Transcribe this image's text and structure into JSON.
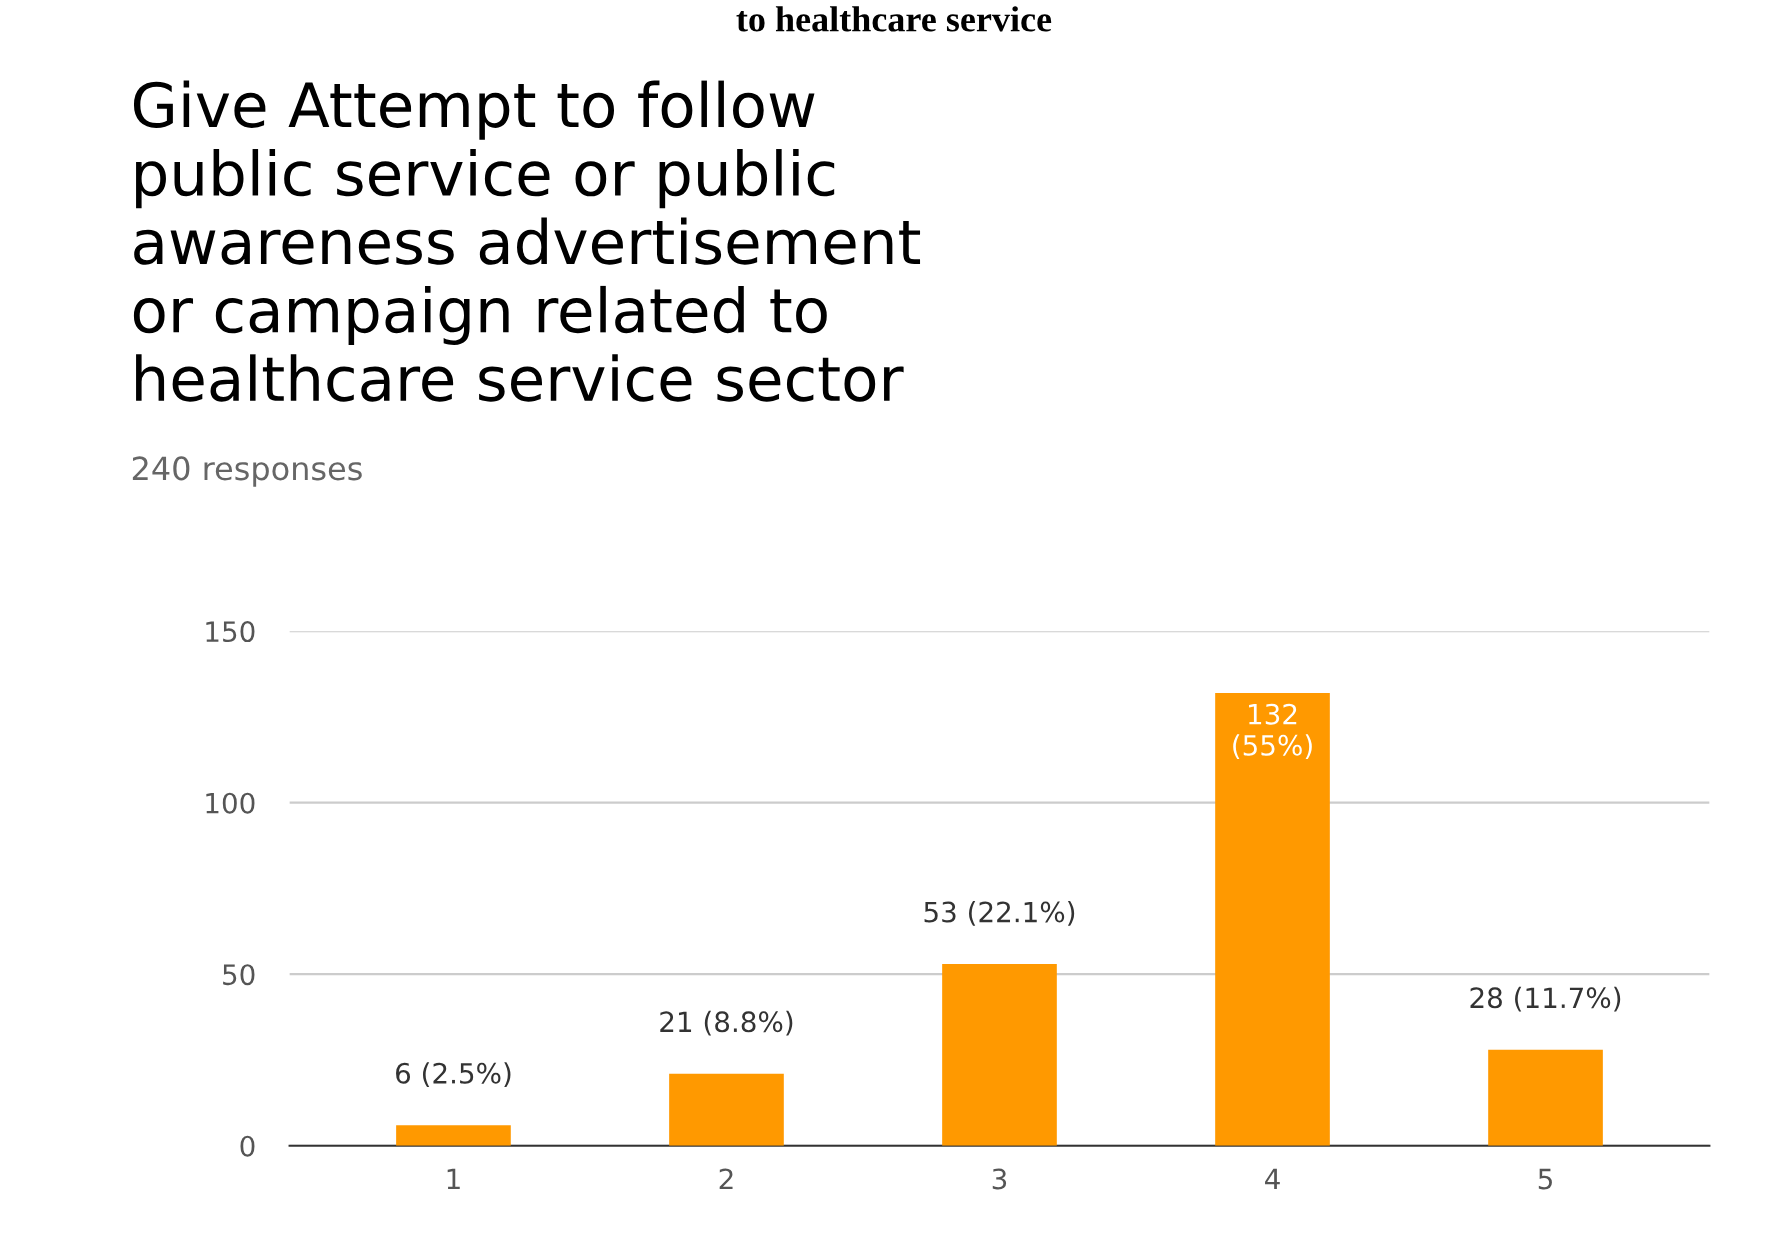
{
  "chart_data": {
    "type": "bar",
    "title": "Give Attempt to follow\npublic service or public\nawareness advertisement\nor campaign related to\nhealthcare service sector",
    "subtitle": "240 responses",
    "annotations": [
      "to healthcare service"
    ],
    "categories": [
      "1",
      "2",
      "3",
      "4",
      "5"
    ],
    "values": [
      6,
      21,
      53,
      132,
      28
    ],
    "value_labels": [
      "6 (2.5%)",
      "21 (8.8%)",
      "53 (22.1%)",
      "132\n(55%)",
      "28 (11.7%)"
    ],
    "color": "#ff9900",
    "ylim": [
      0,
      150
    ],
    "yticks": [
      0,
      50,
      100,
      150
    ],
    "grid": "y"
  }
}
